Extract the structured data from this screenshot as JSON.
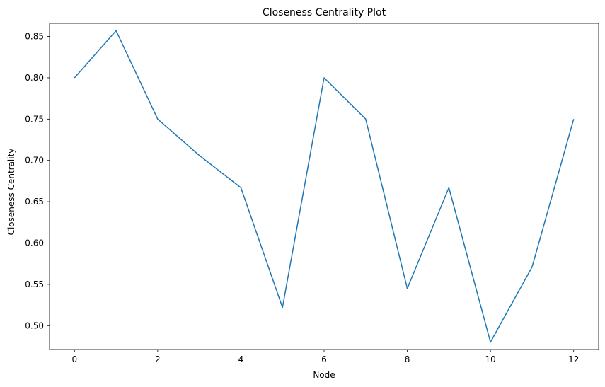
{
  "chart_data": {
    "type": "line",
    "title": "Closeness Centrality Plot",
    "xlabel": "Node",
    "ylabel": "Closeness Centrality",
    "x": [
      0,
      1,
      2,
      3,
      4,
      5,
      6,
      7,
      8,
      9,
      10,
      11,
      12
    ],
    "series": [
      {
        "values": [
          0.8,
          0.857,
          0.75,
          0.706,
          0.667,
          0.522,
          0.8,
          0.75,
          0.545,
          0.667,
          0.48,
          0.571,
          0.75
        ]
      }
    ],
    "xlim": [
      -0.6,
      12.6
    ],
    "ylim": [
      0.4711,
      0.8659
    ],
    "xticks": [
      0,
      2,
      4,
      6,
      8,
      10,
      12
    ],
    "xtick_labels": [
      "0",
      "2",
      "4",
      "6",
      "8",
      "10",
      "12"
    ],
    "yticks": [
      0.5,
      0.55,
      0.6,
      0.65,
      0.7,
      0.75,
      0.8,
      0.85
    ],
    "ytick_labels": [
      "0.50",
      "0.55",
      "0.60",
      "0.65",
      "0.70",
      "0.75",
      "0.80",
      "0.85"
    ],
    "grid": false,
    "line_color": "#1f77b4"
  }
}
